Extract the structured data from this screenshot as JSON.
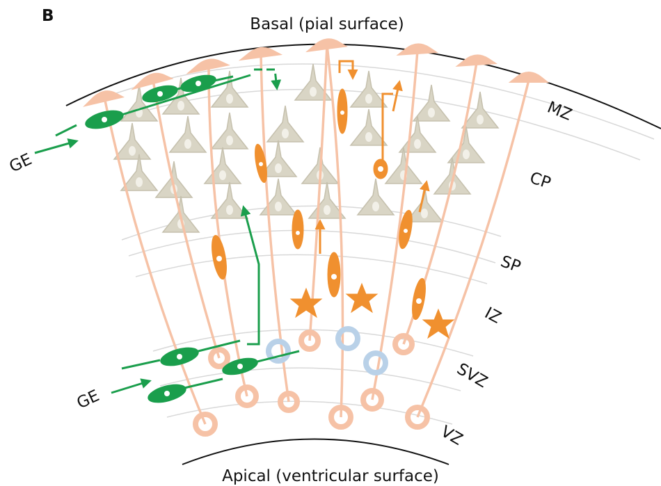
{
  "panel_label": "B",
  "basal_label": "Basal (pial surface)",
  "apical_label": "Apical (ventricular surface)",
  "zones": [
    "MZ",
    "CP",
    "SP",
    "IZ",
    "SVZ",
    "VZ"
  ],
  "ge_labels": [
    "GE",
    "GE"
  ]
}
